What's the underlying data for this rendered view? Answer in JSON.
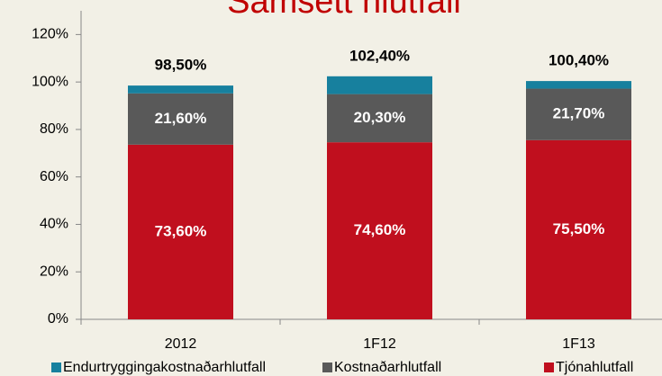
{
  "chart_data": {
    "type": "stacked_bar",
    "title": "Samsett hlutfall",
    "categories": [
      "2012",
      "1F12",
      "1F13"
    ],
    "series": [
      {
        "name": "Endurtryggingakostnaðarhlutfall",
        "color": "#17809e",
        "values": [
          3.3,
          7.5,
          3.2
        ]
      },
      {
        "name": "Kostnaðarhlutfall",
        "color": "#595959",
        "values": [
          21.6,
          20.3,
          21.7
        ],
        "value_labels": [
          "21,60%",
          "20,30%",
          "21,70%"
        ]
      },
      {
        "name": "Tjónahlutfall",
        "color": "#c00f1e",
        "values": [
          73.6,
          74.6,
          75.5
        ],
        "value_labels": [
          "73,60%",
          "74,60%",
          "75,50%"
        ]
      }
    ],
    "total_labels": [
      "98,50%",
      "102,40%",
      "100,40%"
    ],
    "ylim": [
      0,
      130
    ],
    "yticks": [
      {
        "value": 0,
        "label": "0%"
      },
      {
        "value": 20,
        "label": "20%"
      },
      {
        "value": 40,
        "label": "40%"
      },
      {
        "value": 60,
        "label": "60%"
      },
      {
        "value": 80,
        "label": "80%"
      },
      {
        "value": 100,
        "label": "100%"
      },
      {
        "value": 120,
        "label": "120%"
      }
    ]
  }
}
